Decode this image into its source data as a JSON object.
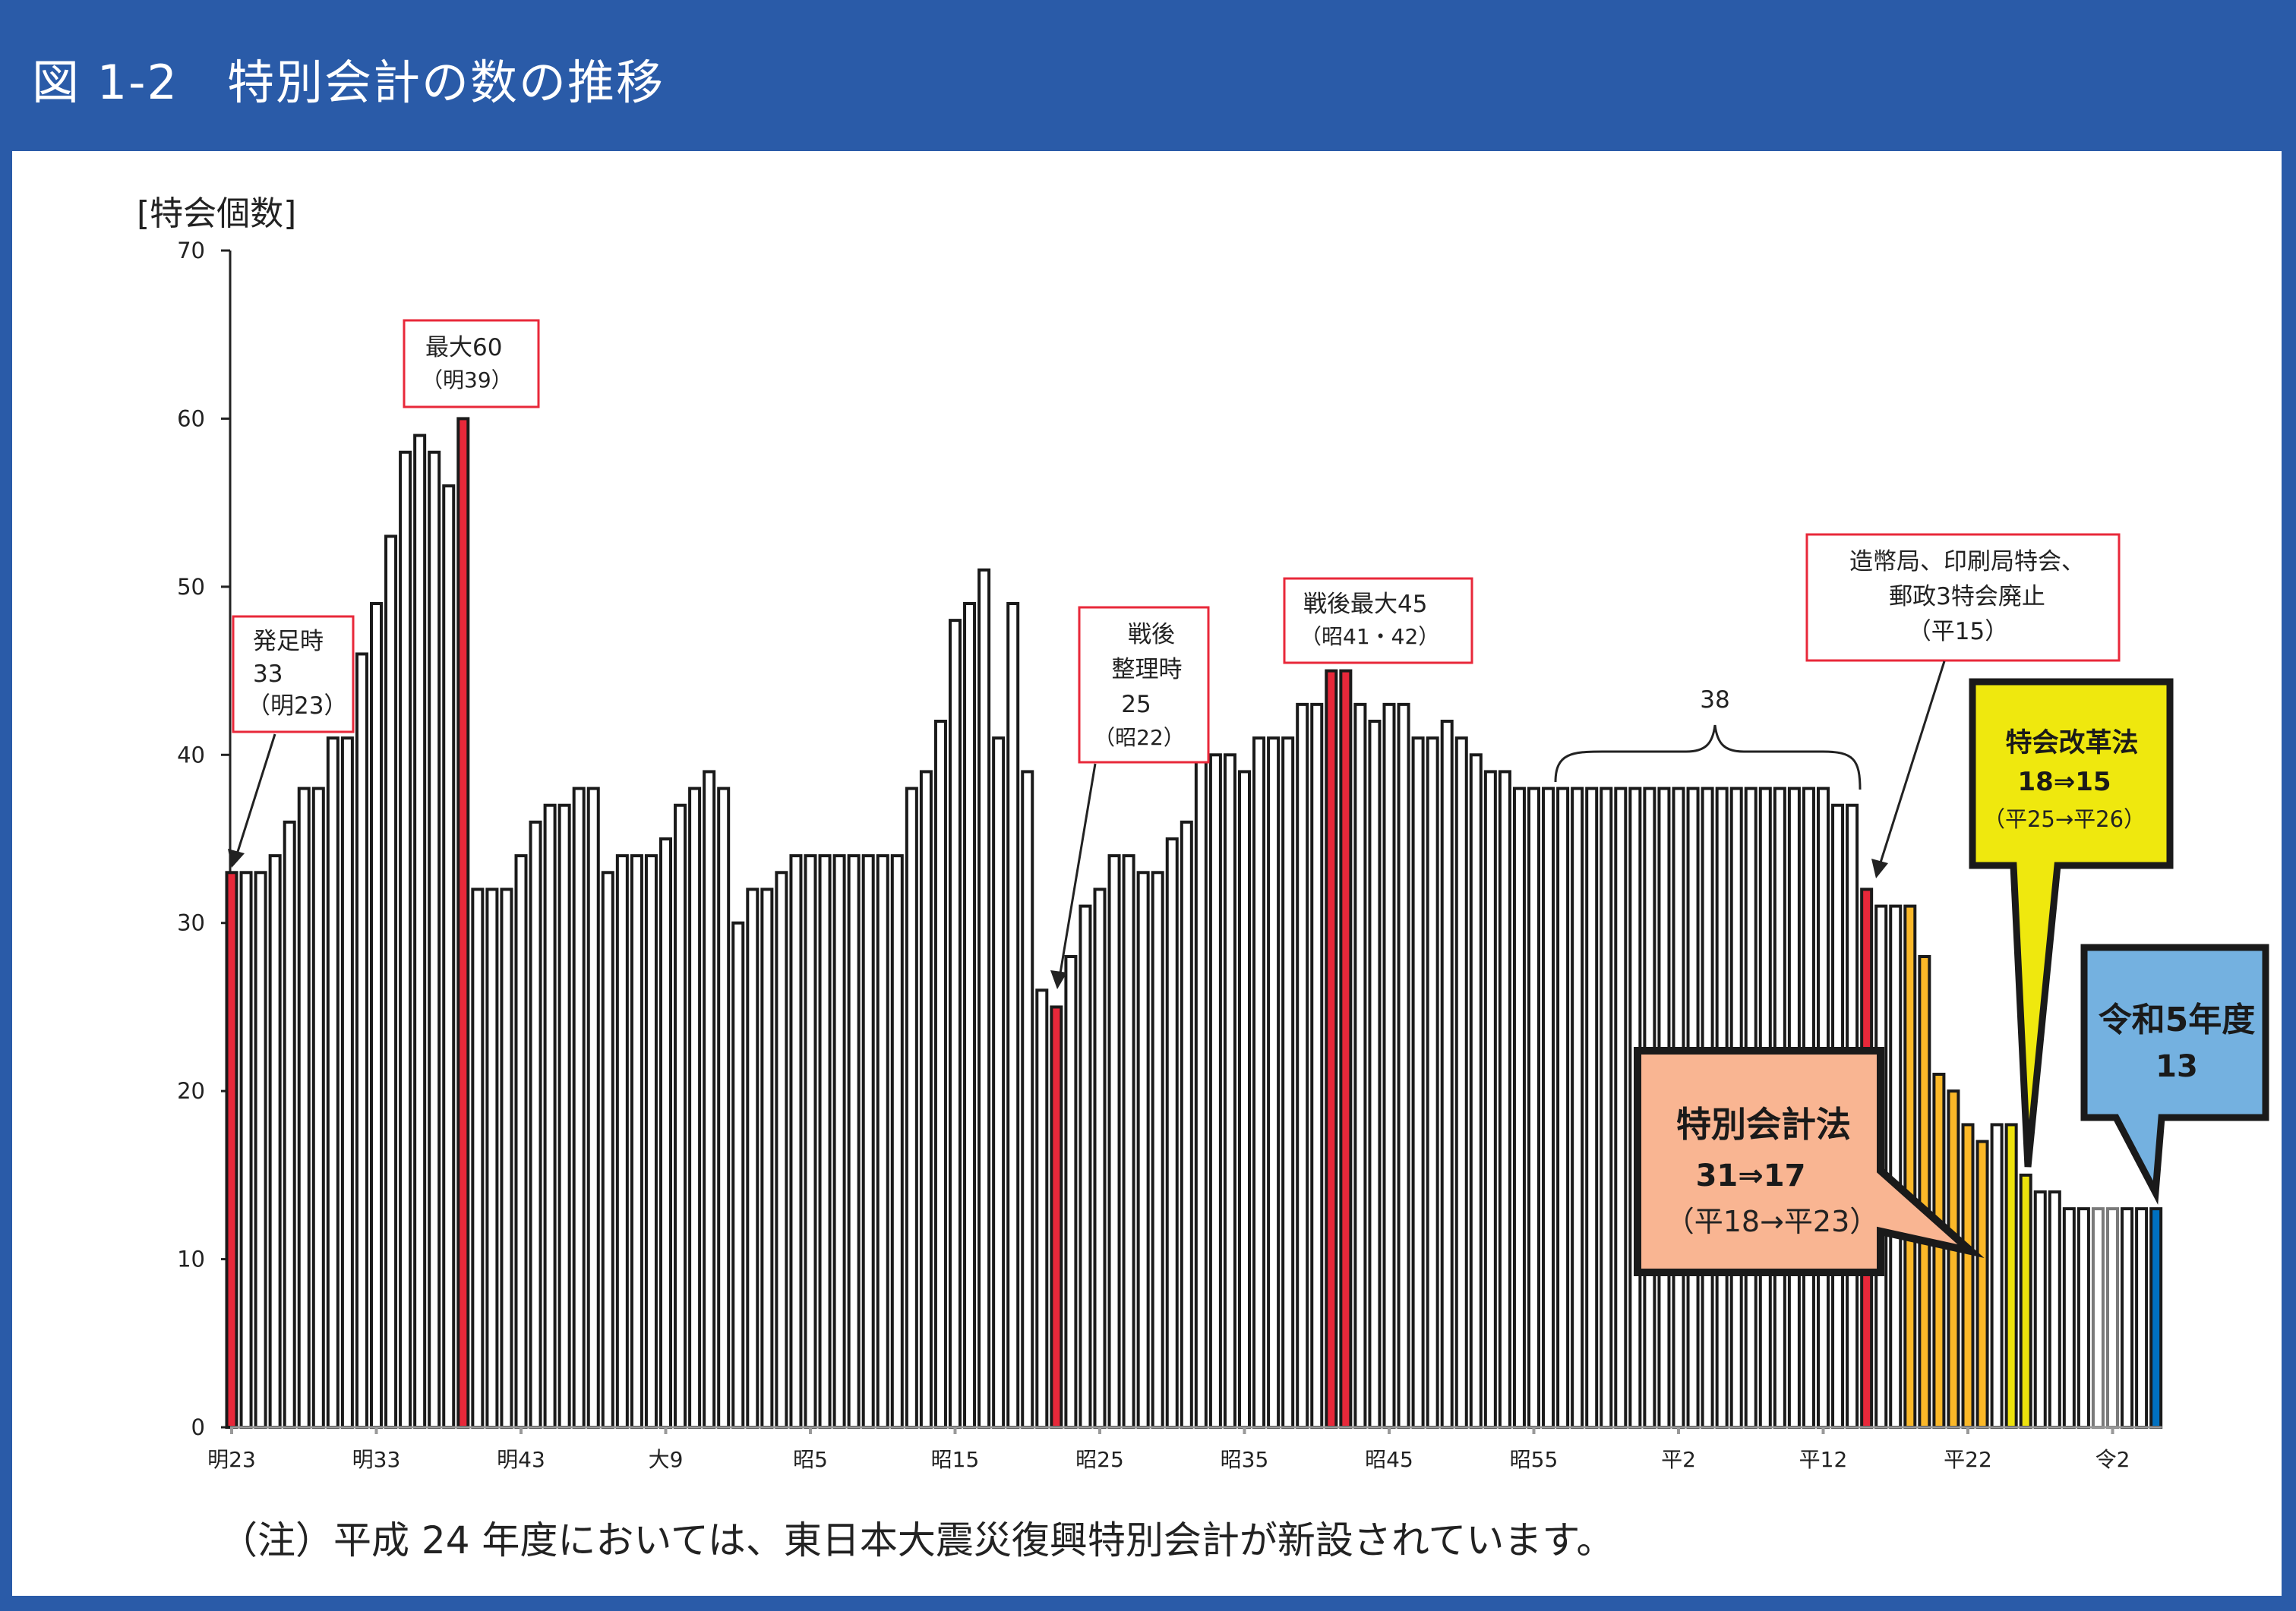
{
  "header": {
    "title": "図 1-2　特別会計の数の推移"
  },
  "footnote": "（注）平成 24 年度においては、東日本大震災復興特別会計が新設されています。",
  "chart_data": {
    "type": "bar",
    "title": "",
    "ylabel": "[特会個数]",
    "xlabel": "",
    "ylim": [
      0,
      70
    ],
    "y_ticks": [
      "0",
      "10",
      "20",
      "30",
      "40",
      "50",
      "60",
      "70"
    ],
    "x_tick_labels": [
      "明23",
      "明33",
      "明43",
      "大9",
      "昭5",
      "昭15",
      "昭25",
      "昭35",
      "昭45",
      "昭55",
      "平2",
      "平12",
      "平22",
      "令2"
    ],
    "x_tick_every": 10,
    "first_bar": "明23",
    "last_bar": "令5",
    "values": [
      33,
      33,
      33,
      34,
      36,
      38,
      38,
      41,
      41,
      46,
      49,
      53,
      58,
      59,
      58,
      56,
      60,
      32,
      32,
      32,
      34,
      36,
      37,
      37,
      38,
      38,
      33,
      34,
      34,
      34,
      35,
      37,
      38,
      39,
      38,
      30,
      32,
      32,
      33,
      34,
      34,
      34,
      34,
      34,
      34,
      34,
      34,
      38,
      39,
      42,
      48,
      49,
      51,
      41,
      49,
      39,
      26,
      25,
      28,
      31,
      32,
      34,
      34,
      33,
      33,
      35,
      36,
      40,
      40,
      40,
      39,
      41,
      41,
      41,
      43,
      43,
      45,
      45,
      43,
      42,
      43,
      43,
      41,
      41,
      42,
      41,
      40,
      39,
      39,
      38,
      38,
      38,
      38,
      38,
      38,
      38,
      38,
      38,
      38,
      38,
      38,
      38,
      38,
      38,
      38,
      38,
      38,
      38,
      38,
      38,
      38,
      37,
      37,
      32,
      31,
      31,
      31,
      28,
      21,
      20,
      18,
      17,
      18,
      18,
      15,
      14,
      14,
      13,
      13,
      13,
      13,
      13,
      13,
      13
    ],
    "highlight_bars": {
      "red": [
        0,
        16,
        57,
        76,
        77,
        113
      ],
      "orange": [
        116,
        117,
        118,
        119,
        120,
        121
      ],
      "yellow": [
        123,
        124
      ],
      "gray": [
        129,
        130
      ],
      "blue": [
        133
      ]
    },
    "colors": {
      "red": "#E8283A",
      "orange": "#FBB828",
      "yellow": "#EDE20C",
      "gray": "#FFFFFF",
      "blue": "#0070C0",
      "default": "#FFFFFF",
      "outline": "#1A1A1A",
      "gray_outline": "#7A7A7A"
    },
    "grid": false,
    "legend": "none",
    "annotations": {
      "founding": {
        "lines": [
          "発足時",
          "33",
          "（明23）"
        ]
      },
      "max": {
        "lines": [
          "最大60",
          "（明39）"
        ]
      },
      "postwar_cleanup": {
        "lines": [
          "戦後",
          "整理時",
          "25",
          "（昭22）"
        ]
      },
      "postwar_max": {
        "lines": [
          "戦後最大45",
          "（昭41・42）"
        ]
      },
      "abolition": {
        "lines": [
          "造幣局、印刷局特会、",
          "郵政3特会廃止",
          "（平15）"
        ]
      },
      "brace_label": "38",
      "special_accounts_act": {
        "lines": [
          "特別会計法",
          "31⇒17",
          "（平18→平23）"
        ],
        "color": "#F9B592"
      },
      "reform_act": {
        "lines": [
          "特会改革法",
          "18⇒15",
          "（平25→平26）"
        ],
        "color": "#EFE80E"
      },
      "reiwa5": {
        "lines": [
          "令和5年度",
          "13"
        ],
        "color": "#74B1E0"
      }
    }
  }
}
